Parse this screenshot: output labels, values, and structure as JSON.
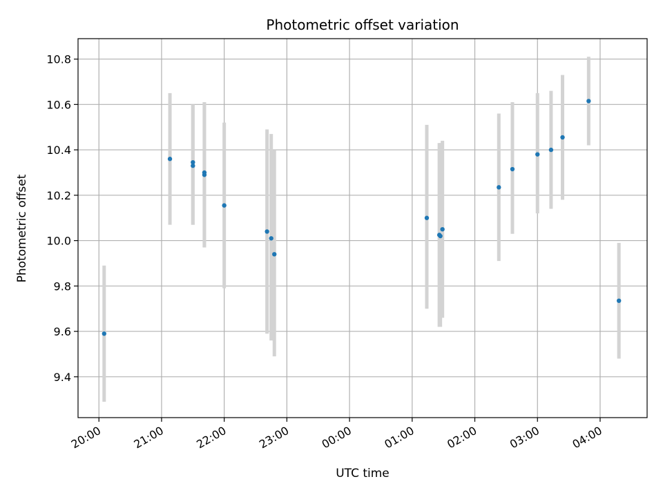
{
  "chart_data": {
    "type": "scatter",
    "title": "Photometric offset variation",
    "xlabel": "UTC time",
    "ylabel": "Photometric offset",
    "xlim": [
      "19:40",
      "04:45"
    ],
    "ylim": [
      9.22,
      10.89
    ],
    "x_ticks": [
      "20:00",
      "21:00",
      "22:00",
      "23:00",
      "00:00",
      "01:00",
      "02:00",
      "03:00",
      "04:00"
    ],
    "y_ticks": [
      9.4,
      9.6,
      9.8,
      10.0,
      10.2,
      10.4,
      10.6,
      10.8
    ],
    "grid": true,
    "colors": {
      "point": "#1f77b4",
      "errorbar": "#d3d3d3",
      "grid": "#b0b0b0"
    },
    "points": [
      {
        "x": "20:05",
        "y": 9.59,
        "y_low": 9.29,
        "y_high": 9.89
      },
      {
        "x": "21:08",
        "y": 10.36,
        "y_low": 10.07,
        "y_high": 10.65
      },
      {
        "x": "21:30",
        "y": 10.345,
        "y_low": 10.07,
        "y_high": 10.6
      },
      {
        "x": "21:30",
        "y": 10.33,
        "y_low": 10.07,
        "y_high": 10.6
      },
      {
        "x": "21:41",
        "y": 10.3,
        "y_low": 9.97,
        "y_high": 10.61
      },
      {
        "x": "21:41",
        "y": 10.29,
        "y_low": 9.97,
        "y_high": 10.61
      },
      {
        "x": "22:00",
        "y": 10.155,
        "y_low": 9.79,
        "y_high": 10.52
      },
      {
        "x": "22:41",
        "y": 10.04,
        "y_low": 9.59,
        "y_high": 10.49
      },
      {
        "x": "22:45",
        "y": 10.01,
        "y_low": 9.56,
        "y_high": 10.47
      },
      {
        "x": "22:48",
        "y": 9.94,
        "y_low": 9.49,
        "y_high": 10.4
      },
      {
        "x": "01:14",
        "y": 10.1,
        "y_low": 9.7,
        "y_high": 10.51
      },
      {
        "x": "01:26",
        "y": 10.025,
        "y_low": 9.62,
        "y_high": 10.43
      },
      {
        "x": "01:27",
        "y": 10.02,
        "y_low": 9.62,
        "y_high": 10.43
      },
      {
        "x": "01:29",
        "y": 10.05,
        "y_low": 9.66,
        "y_high": 10.44
      },
      {
        "x": "02:23",
        "y": 10.235,
        "y_low": 9.91,
        "y_high": 10.56
      },
      {
        "x": "02:36",
        "y": 10.315,
        "y_low": 10.03,
        "y_high": 10.61
      },
      {
        "x": "03:00",
        "y": 10.38,
        "y_low": 10.12,
        "y_high": 10.65
      },
      {
        "x": "03:13",
        "y": 10.4,
        "y_low": 10.14,
        "y_high": 10.66
      },
      {
        "x": "03:24",
        "y": 10.455,
        "y_low": 10.18,
        "y_high": 10.73
      },
      {
        "x": "03:49",
        "y": 10.615,
        "y_low": 10.42,
        "y_high": 10.81
      },
      {
        "x": "04:18",
        "y": 9.735,
        "y_low": 9.48,
        "y_high": 9.99
      }
    ]
  }
}
